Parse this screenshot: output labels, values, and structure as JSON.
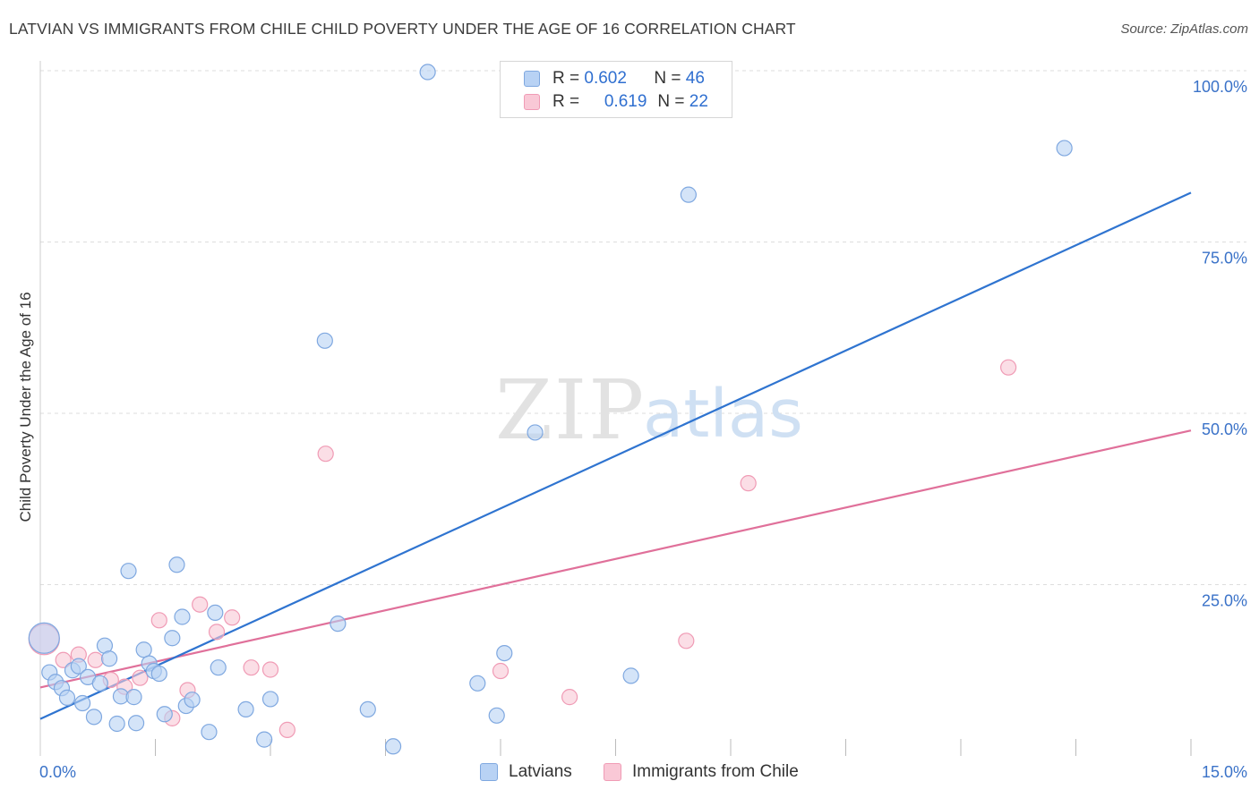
{
  "title": "LATVIAN VS IMMIGRANTS FROM CHILE CHILD POVERTY UNDER THE AGE OF 16 CORRELATION CHART",
  "source": "Source: ZipAtlas.com",
  "watermark": {
    "zip": "ZIP",
    "atlas": "atlas"
  },
  "legend_top": {
    "rows": [
      {
        "r_label": "R =",
        "r_value": "0.602",
        "n_label": "N =",
        "n_value": "46"
      },
      {
        "r_label": "R =",
        "r_value": "0.619",
        "n_label": "N =",
        "n_value": "22"
      }
    ]
  },
  "colors": {
    "latvians_fill": "#b8d2f4",
    "latvians_stroke": "#7fa8e0",
    "latvians_line": "#2f74d0",
    "chile_fill": "#f9c8d6",
    "chile_stroke": "#f09bb5",
    "chile_line": "#e0709a",
    "tick_text": "#3a72c8",
    "grid": "#dddddd"
  },
  "chart_data": {
    "type": "scatter",
    "title": "LATVIAN VS IMMIGRANTS FROM CHILE CHILD POVERTY UNDER THE AGE OF 16 CORRELATION CHART",
    "xlabel": "",
    "ylabel": "Child Poverty Under the Age of 16",
    "xlim": [
      0,
      15
    ],
    "ylim": [
      0,
      100
    ],
    "x_tick_labels": [
      "0.0%",
      "15.0%"
    ],
    "y_tick_labels": [
      "25.0%",
      "50.0%",
      "75.0%",
      "100.0%"
    ],
    "y_ticks": [
      25,
      50,
      75,
      100
    ],
    "grid": true,
    "legend_position": "bottom",
    "series": [
      {
        "name": "Latvians",
        "r": 0.602,
        "n": 46,
        "trend": {
          "x": [
            0,
            15
          ],
          "y": [
            5.4,
            82.2
          ]
        },
        "points": [
          [
            0.05,
            17.2
          ],
          [
            0.12,
            12.2
          ],
          [
            0.2,
            10.8
          ],
          [
            0.28,
            9.9
          ],
          [
            0.35,
            8.5
          ],
          [
            0.42,
            12.5
          ],
          [
            0.5,
            13.1
          ],
          [
            0.55,
            7.7
          ],
          [
            0.62,
            11.5
          ],
          [
            0.7,
            5.7
          ],
          [
            0.78,
            10.6
          ],
          [
            0.84,
            16.1
          ],
          [
            0.9,
            14.2
          ],
          [
            1.0,
            4.7
          ],
          [
            1.05,
            8.7
          ],
          [
            1.15,
            27.0
          ],
          [
            1.22,
            8.6
          ],
          [
            1.25,
            4.8
          ],
          [
            1.35,
            15.5
          ],
          [
            1.42,
            13.5
          ],
          [
            1.48,
            12.4
          ],
          [
            1.55,
            12.0
          ],
          [
            1.62,
            6.1
          ],
          [
            1.72,
            17.2
          ],
          [
            1.78,
            27.9
          ],
          [
            1.85,
            20.3
          ],
          [
            1.9,
            7.3
          ],
          [
            1.98,
            8.2
          ],
          [
            2.2,
            3.5
          ],
          [
            2.28,
            20.9
          ],
          [
            2.32,
            12.9
          ],
          [
            2.68,
            6.8
          ],
          [
            2.92,
            2.4
          ],
          [
            3.0,
            8.3
          ],
          [
            3.71,
            60.6
          ],
          [
            3.88,
            19.3
          ],
          [
            4.27,
            6.8
          ],
          [
            4.6,
            1.4
          ],
          [
            5.05,
            99.8
          ],
          [
            5.7,
            10.6
          ],
          [
            5.95,
            5.9
          ],
          [
            6.05,
            15.0
          ],
          [
            6.45,
            47.2
          ],
          [
            7.7,
            11.7
          ],
          [
            8.45,
            81.9
          ],
          [
            13.35,
            88.7
          ]
        ]
      },
      {
        "name": "Immigrants from Chile",
        "r": 0.619,
        "n": 22,
        "trend": {
          "x": [
            0,
            15
          ],
          "y": [
            10.0,
            47.5
          ]
        },
        "points": [
          [
            0.05,
            17.0
          ],
          [
            0.3,
            14.0
          ],
          [
            0.5,
            14.8
          ],
          [
            0.72,
            14.0
          ],
          [
            0.92,
            11.1
          ],
          [
            1.1,
            10.1
          ],
          [
            1.3,
            11.4
          ],
          [
            1.55,
            19.8
          ],
          [
            1.72,
            5.5
          ],
          [
            1.92,
            9.6
          ],
          [
            2.08,
            22.1
          ],
          [
            2.3,
            18.1
          ],
          [
            2.5,
            20.2
          ],
          [
            2.75,
            12.9
          ],
          [
            3.0,
            12.6
          ],
          [
            3.22,
            3.8
          ],
          [
            3.72,
            44.1
          ],
          [
            6.0,
            12.4
          ],
          [
            6.9,
            8.6
          ],
          [
            8.42,
            16.8
          ],
          [
            9.23,
            39.8
          ],
          [
            12.62,
            56.7
          ]
        ]
      }
    ]
  },
  "legend_bottom": {
    "items": [
      "Latvians",
      "Immigrants from Chile"
    ]
  }
}
